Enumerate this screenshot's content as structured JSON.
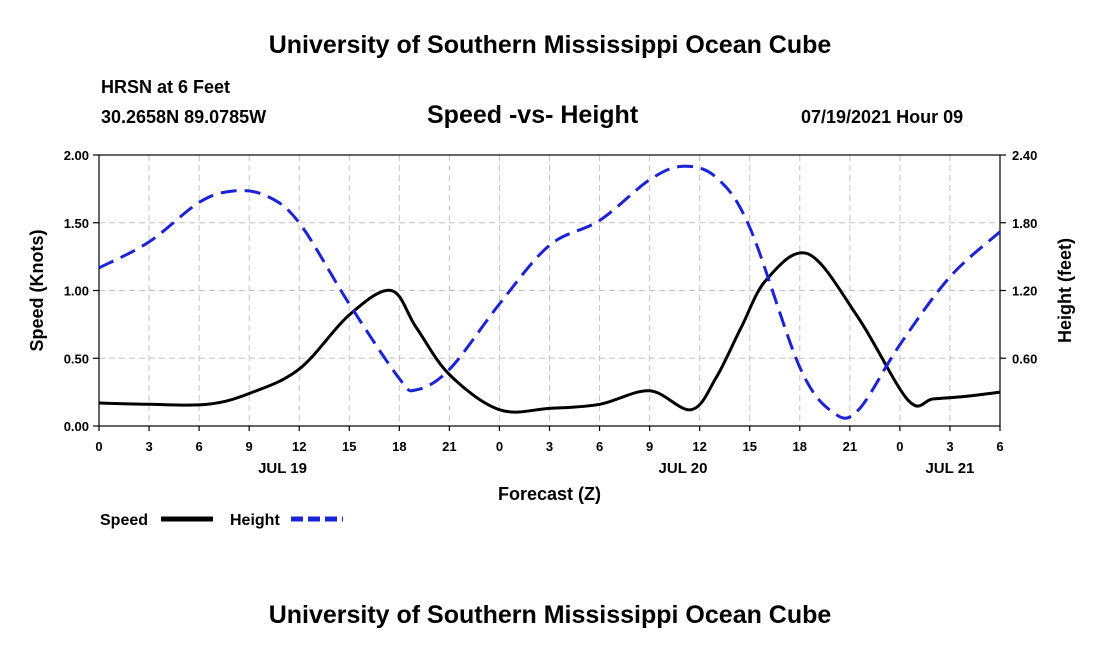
{
  "header": {
    "title_top": "University of Southern Mississippi Ocean Cube",
    "station": "HRSN at 6 Feet",
    "coords": "30.2658N  89.0785W",
    "plot_title": "Speed -vs- Height",
    "run_time": "07/19/2021 Hour 09"
  },
  "footer": {
    "title_bottom": "University of Southern Mississippi Ocean Cube"
  },
  "chart_data": {
    "type": "line",
    "title": "Speed -vs- Height",
    "xlabel": "Forecast (Z)",
    "ylabel": "Speed (Knots)",
    "ylabel_right": "Height (feet)",
    "x_range_hours": [
      0,
      54
    ],
    "x_tick_hours": [
      0,
      3,
      6,
      9,
      12,
      15,
      18,
      21,
      24,
      27,
      30,
      33,
      36,
      39,
      42,
      45,
      48,
      51,
      54
    ],
    "x_tick_labels": [
      "0",
      "3",
      "6",
      "9",
      "12",
      "15",
      "18",
      "21",
      "0",
      "3",
      "6",
      "9",
      "12",
      "15",
      "18",
      "21",
      "0",
      "3",
      "6"
    ],
    "date_labels": [
      {
        "hour": 11,
        "label": "JUL 19"
      },
      {
        "hour": 35,
        "label": "JUL 20"
      },
      {
        "hour": 51,
        "label": "JUL 21"
      }
    ],
    "ylim_left": [
      0,
      2.0
    ],
    "y_ticks_left": [
      "0.00",
      "0.50",
      "1.00",
      "1.50",
      "2.00"
    ],
    "ylim_right": [
      0,
      2.4
    ],
    "y_ticks_right": [
      "0.60",
      "1.20",
      "1.80",
      "2.40"
    ],
    "grid": true,
    "legend_position": "bottom-left",
    "series": [
      {
        "name": "Speed",
        "axis": "left",
        "color": "#000000",
        "style": "solid",
        "x": [
          0,
          3,
          6.5,
          9,
          12,
          15,
          17.5,
          19,
          21,
          24,
          27,
          30,
          33,
          35.5,
          37,
          38.5,
          40,
          42.5,
          45.5,
          48.5,
          50,
          52,
          54
        ],
        "values": [
          0.17,
          0.16,
          0.16,
          0.24,
          0.42,
          0.82,
          1.0,
          0.73,
          0.38,
          0.12,
          0.13,
          0.16,
          0.26,
          0.12,
          0.36,
          0.73,
          1.08,
          1.27,
          0.8,
          0.19,
          0.2,
          0.22,
          0.25
        ]
      },
      {
        "name": "Height",
        "axis": "right",
        "color": "#1a24d6",
        "style": "dashed",
        "x": [
          0,
          3,
          6,
          8,
          10,
          12,
          15,
          18,
          19,
          21,
          24,
          27,
          30,
          33,
          35,
          37,
          39,
          42,
          44,
          45.5,
          48,
          51,
          54
        ],
        "values": [
          1.4,
          1.63,
          1.98,
          2.08,
          2.04,
          1.8,
          1.08,
          0.42,
          0.32,
          0.5,
          1.08,
          1.6,
          1.82,
          2.18,
          2.3,
          2.2,
          1.76,
          0.52,
          0.12,
          0.14,
          0.72,
          1.32,
          1.72
        ]
      }
    ]
  }
}
